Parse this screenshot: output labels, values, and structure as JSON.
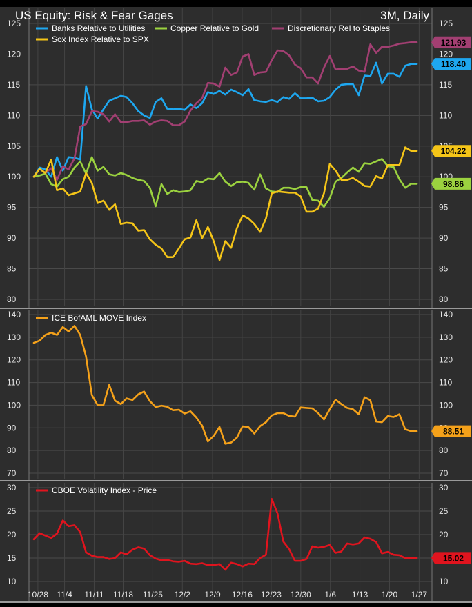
{
  "header": {
    "title": "US Equity: Risk & Fear Gages",
    "period": "3M, Daily"
  },
  "chart_data": [
    {
      "type": "line",
      "ylim": [
        80,
        125
      ],
      "yticks": [
        80,
        85,
        90,
        95,
        100,
        105,
        110,
        115,
        120,
        125
      ],
      "legend_placement": "top-left",
      "series": [
        {
          "name": "Banks Relative to Utilities",
          "color": "#1ea7f0",
          "last_label": "118.40",
          "values": [
            100,
            101.5,
            101.2,
            100,
            103.2,
            101,
            103.2,
            103.1,
            102.8,
            114.8,
            111,
            109.5,
            111,
            112.4,
            112.8,
            113.2,
            113,
            112,
            110.7,
            110,
            109.6,
            112.2,
            112.8,
            111.1,
            111,
            111.1,
            110.9,
            111.8,
            111.2,
            112,
            113.8,
            113.5,
            114,
            113.4,
            114.2,
            113.8,
            113.3,
            114.3,
            112.5,
            112.3,
            112.2,
            112.5,
            112.2,
            113,
            112.7,
            113.6,
            112.8,
            112.8,
            112.9,
            112.3,
            112.4,
            113,
            114.2,
            115,
            115.1,
            115.1,
            113.3,
            116.5,
            116.4,
            118.6,
            115.2,
            116.8,
            116.8,
            116.3,
            118.1,
            118.4,
            118.4
          ]
        },
        {
          "name": "Copper Relative to Gold",
          "color": "#9bd23f",
          "last_label": "98.86",
          "values": [
            100,
            100.2,
            100.5,
            98.8,
            98.4,
            99.6,
            100,
            101.5,
            102.5,
            100.5,
            103.2,
            101,
            101.6,
            100.4,
            100.2,
            100.6,
            100.3,
            99.8,
            99.5,
            99.3,
            98.2,
            95.2,
            98.8,
            97.2,
            97.8,
            97.5,
            97.6,
            97.8,
            99.3,
            99.1,
            99.7,
            99.6,
            100.6,
            99.2,
            98.5,
            99.1,
            99.2,
            99,
            97.9,
            100.4,
            98.1,
            97.6,
            97.5,
            98.2,
            98.2,
            98,
            98.3,
            98.3,
            96.2,
            96.1,
            95.1,
            96.5,
            99.2,
            99.8,
            100.7,
            101.5,
            100.8,
            102.2,
            102.1,
            102.5,
            102.9,
            101.7,
            101.6,
            99.6,
            98.2,
            98.86,
            98.86
          ]
        },
        {
          "name": "Discretionary Rel to Staples",
          "color": "#a23f72",
          "last_label": "121.93",
          "values": [
            100,
            101.3,
            100.6,
            101.4,
            99.5,
            101.7,
            101.2,
            103,
            108.2,
            108.6,
            110.7,
            110.6,
            110.2,
            109,
            110.2,
            108.9,
            108.9,
            109.1,
            109.1,
            109.2,
            108.5,
            109,
            109.2,
            109.1,
            108.4,
            108.4,
            109,
            110.8,
            112,
            112.8,
            115.3,
            115.2,
            114.7,
            117.8,
            116.6,
            117,
            119.6,
            120,
            116.6,
            117,
            117.1,
            119,
            120.6,
            120.5,
            119.8,
            118.3,
            117.7,
            116.2,
            116.2,
            115.2,
            117.8,
            119.7,
            117.5,
            117.6,
            117.6,
            118,
            117.3,
            117.1,
            121.6,
            120.2,
            121.2,
            121.2,
            121.4,
            121.7,
            121.8,
            121.93,
            121.93
          ]
        },
        {
          "name": "Sox Index Relative to SPX",
          "color": "#f5c518",
          "last_label": "104.22",
          "values": [
            100,
            101.3,
            100.6,
            102.8,
            97.8,
            98.1,
            97,
            97.3,
            97.6,
            100.6,
            99,
            95.7,
            96.1,
            94.6,
            95.5,
            92.3,
            92.5,
            92.4,
            91.2,
            91.3,
            89.8,
            88.9,
            88.3,
            86.9,
            86.9,
            88.3,
            89.8,
            90.1,
            92.9,
            90,
            91.8,
            89.5,
            86.4,
            89.5,
            88.4,
            91.6,
            93.7,
            93.2,
            92.3,
            91,
            93.2,
            97.3,
            97.6,
            97.5,
            97.4,
            97.4,
            96.8,
            94.3,
            94.3,
            94.8,
            97.3,
            102.1,
            101,
            99.5,
            99.5,
            99.8,
            99.2,
            98.5,
            98.4,
            100.1,
            99.7,
            101.9,
            101.9,
            101.9,
            104.8,
            104.22,
            104.22
          ]
        }
      ]
    },
    {
      "type": "line",
      "ylim": [
        70,
        140
      ],
      "yticks": [
        70,
        80,
        90,
        100,
        110,
        120,
        130,
        140
      ],
      "legend_placement": "top-left",
      "series": [
        {
          "name": "ICE BofAML MOVE Index",
          "color": "#f4a11a",
          "last_label": "88.51",
          "values": [
            127.5,
            128.5,
            131,
            132,
            131,
            134.5,
            132.5,
            135,
            131,
            121.5,
            104.5,
            100,
            100,
            109,
            102,
            100.5,
            103,
            102.3,
            104.8,
            106,
            101.8,
            99.2,
            99.8,
            99.3,
            97.8,
            98,
            96.3,
            97.3,
            94.6,
            91,
            84,
            86.5,
            90.4,
            83,
            83.5,
            85.7,
            90.7,
            90.3,
            87.5,
            90.8,
            92.5,
            95.5,
            96.5,
            96.5,
            95.3,
            95,
            99,
            98.8,
            98.6,
            96.5,
            93.7,
            98.2,
            102.4,
            100.5,
            98.8,
            98.2,
            96,
            103.5,
            102.2,
            92.8,
            92.5,
            95.2,
            94.8,
            96,
            89.4,
            88.51,
            88.51
          ]
        }
      ]
    },
    {
      "type": "line",
      "ylim": [
        10,
        30
      ],
      "yticks": [
        10,
        15,
        20,
        25,
        30
      ],
      "legend_placement": "top-left",
      "x_tick_labels": [
        "10/28",
        "11/4",
        "11/11",
        "11/18",
        "11/25",
        "12/2",
        "12/9",
        "12/16",
        "12/23",
        "12/30",
        "1/6",
        "1/13",
        "1/20",
        "1/27"
      ],
      "series": [
        {
          "name": "CBOE Volatility Index - Price",
          "color": "#e0141e",
          "last_label": "15.02",
          "values": [
            19,
            20.3,
            19.8,
            19.3,
            20.2,
            23,
            21.8,
            22,
            20.5,
            16.2,
            15.5,
            15.2,
            15.2,
            14.8,
            15,
            16.2,
            15.8,
            16.8,
            17.3,
            17,
            15.6,
            14.9,
            14.5,
            14.6,
            14.3,
            14.2,
            14.4,
            13.8,
            13.7,
            13.9,
            13.5,
            13.5,
            13.7,
            12.5,
            14,
            13.7,
            13.2,
            13.8,
            13.7,
            15,
            15.7,
            27.6,
            24.5,
            18.5,
            16.9,
            14.4,
            14.4,
            14.8,
            17.5,
            17.2,
            17.4,
            17.8,
            16.1,
            16.4,
            18.1,
            17.9,
            18.1,
            19.4,
            19.1,
            18.4,
            16,
            16.3,
            15.7,
            15.6,
            15,
            15.02,
            15.02
          ]
        }
      ]
    }
  ]
}
